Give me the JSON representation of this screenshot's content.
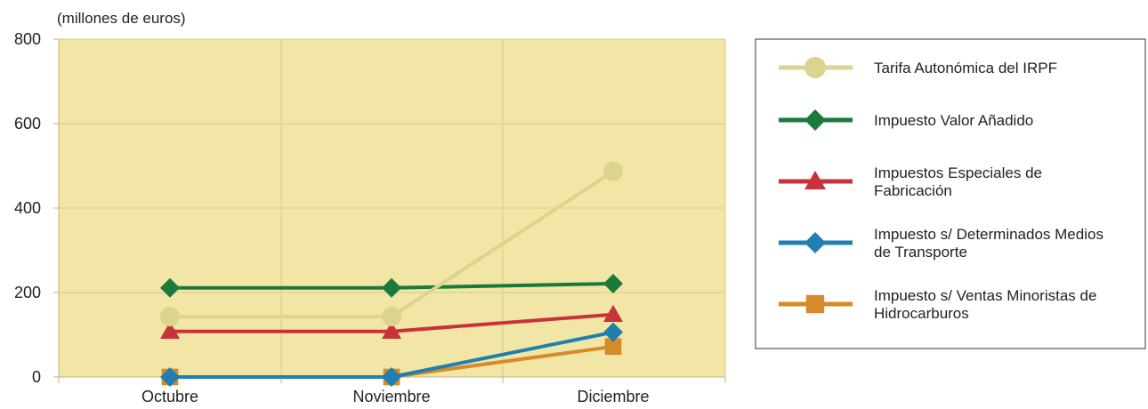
{
  "chart_data": {
    "type": "line",
    "unit_label": "(millones de euros)",
    "categories": [
      "Octubre",
      "Noviembre",
      "Diciembre"
    ],
    "ylim": [
      0,
      800
    ],
    "yticks": [
      0,
      200,
      400,
      600,
      800
    ],
    "grid": true,
    "plot_background": "#f1e6a6",
    "legend_placement": "right",
    "series": [
      {
        "name": "Tarifa Autonómica del IRPF",
        "color": "#dcd48e",
        "marker": "circle",
        "values": [
          143,
          143,
          487
        ]
      },
      {
        "name": "Impuesto Valor Añadido",
        "color": "#1a7a3c",
        "marker": "diamond",
        "values": [
          211,
          211,
          221
        ]
      },
      {
        "name": "Impuestos Especiales de Fabricación",
        "color": "#c9323a",
        "marker": "triangle",
        "values": [
          108,
          108,
          148
        ]
      },
      {
        "name": "Impuesto s/ Determinados Medios de Transporte",
        "color": "#1f7fb0",
        "marker": "diamond",
        "values": [
          0,
          0,
          106
        ]
      },
      {
        "name": "Impuesto s/ Ventas Minoristas de Hidrocarburos",
        "color": "#d68a2a",
        "marker": "square",
        "values": [
          0,
          0,
          72
        ]
      }
    ]
  }
}
